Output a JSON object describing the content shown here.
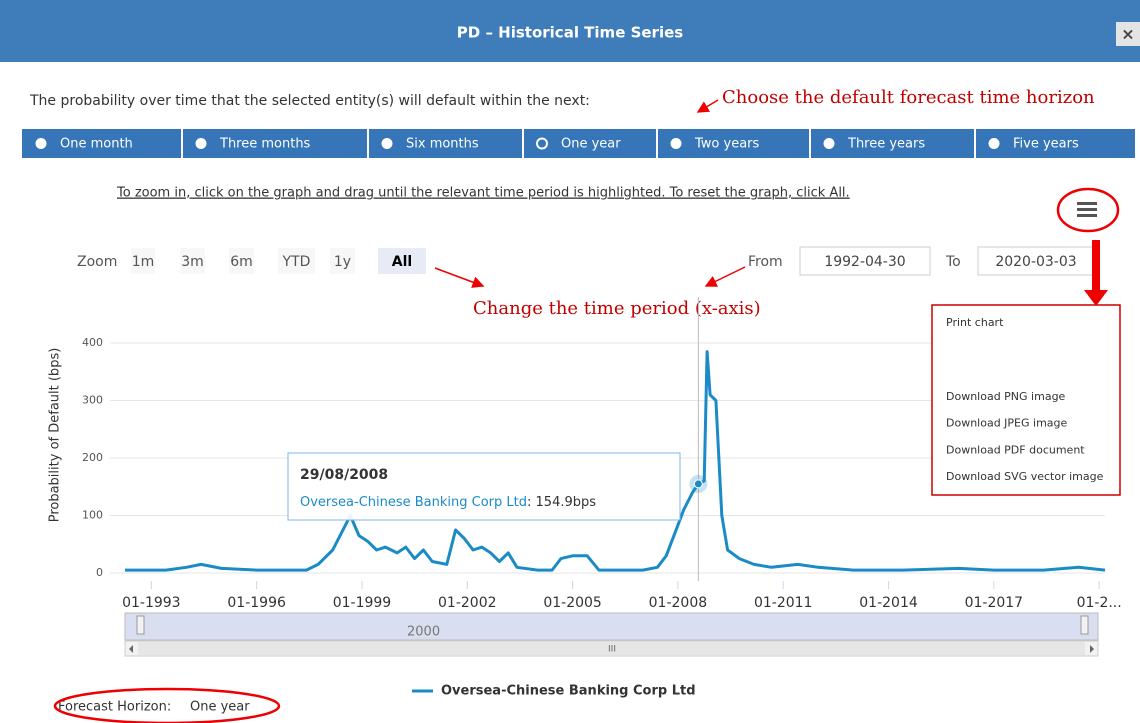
{
  "dialog": {
    "title": "PD – Historical Time Series",
    "close": "×"
  },
  "prompt": "The probability over time that the selected entity(s) will default within the next:",
  "horizons": [
    "One month",
    "Three months",
    "Six months",
    "One year",
    "Two years",
    "Three years",
    "Five years"
  ],
  "selected_horizon": 3,
  "annotations": [
    "Choose the default forecast time horizon",
    "Change the time period (x-axis)"
  ],
  "instructions": "To zoom in, click on the graph and drag until the relevant time period is highlighted. To reset the graph, click All.",
  "zoom": {
    "label": "Zoom",
    "buttons": [
      "1m",
      "3m",
      "6m",
      "YTD",
      "1y",
      "All"
    ],
    "selected": 5
  },
  "range": {
    "from_label": "From",
    "from": "1992-04-30",
    "to_label": "To",
    "to": "2020-03-03"
  },
  "menu": {
    "print": "Print chart",
    "downloads": [
      "Download PNG image",
      "Download JPEG image",
      "Download PDF document",
      "Download SVG vector image"
    ]
  },
  "chart_data": {
    "type": "line",
    "ylabel": "Probability of Default (bps)",
    "x": [
      "1992-04",
      "1993-06",
      "1994-01",
      "1994-06",
      "1995-01",
      "1996-01",
      "1997-06",
      "1997-10",
      "1998-03",
      "1998-06",
      "1998-09",
      "1998-12",
      "1999-03",
      "1999-06",
      "1999-09",
      "2000-01",
      "2000-04",
      "2000-07",
      "2000-10",
      "2001-01",
      "2001-06",
      "2001-09",
      "2001-12",
      "2002-03",
      "2002-06",
      "2002-09",
      "2002-12",
      "2003-03",
      "2003-06",
      "2004-01",
      "2004-06",
      "2004-09",
      "2005-01",
      "2005-06",
      "2005-10",
      "2006-06",
      "2007-01",
      "2007-06",
      "2007-09",
      "2007-12",
      "2008-03",
      "2008-06",
      "2008-08",
      "2008-10",
      "2008-11",
      "2008-12",
      "2009-02",
      "2009-04",
      "2009-06",
      "2009-10",
      "2010-03",
      "2010-09",
      "2011-06",
      "2012-01",
      "2013-01",
      "2014-06",
      "2016-01",
      "2017-01",
      "2018-06",
      "2019-06",
      "2020-03"
    ],
    "series": [
      {
        "name": "Oversea-Chinese Banking Corp Ltd",
        "color": "#1a8bc6",
        "values": [
          5,
          5,
          10,
          15,
          8,
          5,
          5,
          15,
          40,
          70,
          100,
          65,
          55,
          40,
          45,
          35,
          45,
          25,
          40,
          20,
          15,
          75,
          60,
          40,
          45,
          35,
          20,
          35,
          10,
          5,
          5,
          25,
          30,
          30,
          5,
          5,
          5,
          10,
          30,
          70,
          110,
          140,
          154.9,
          160,
          385,
          310,
          300,
          100,
          40,
          25,
          15,
          10,
          15,
          10,
          5,
          5,
          8,
          5,
          5,
          10,
          5
        ]
      }
    ],
    "xlim": [
      "1992-04",
      "2020-03"
    ],
    "xticks": [
      {
        "value": "1993-01",
        "label": "01-1993"
      },
      {
        "value": "1996-01",
        "label": "01-1996"
      },
      {
        "value": "1999-01",
        "label": "01-1999"
      },
      {
        "value": "2002-01",
        "label": "01-2002"
      },
      {
        "value": "2005-01",
        "label": "01-2005"
      },
      {
        "value": "2008-01",
        "label": "01-2008"
      },
      {
        "value": "2011-01",
        "label": "01-2011"
      },
      {
        "value": "2014-01",
        "label": "01-2014"
      },
      {
        "value": "2017-01",
        "label": "01-2017"
      },
      {
        "value": "2020-01",
        "label": "01-2..."
      }
    ],
    "ylim": [
      0,
      480
    ],
    "yticks": [
      0,
      100,
      200,
      300,
      400
    ],
    "grid": true
  },
  "tooltip": {
    "date": "29/08/2008",
    "series": "Oversea-Chinese Banking Corp Ltd",
    "value_text": ": 154.9bps",
    "point": 42
  },
  "navigator": {
    "label": "2000",
    "scrollbar": "III"
  },
  "footer": {
    "label": "Forecast Horizon:",
    "value": "One year"
  }
}
